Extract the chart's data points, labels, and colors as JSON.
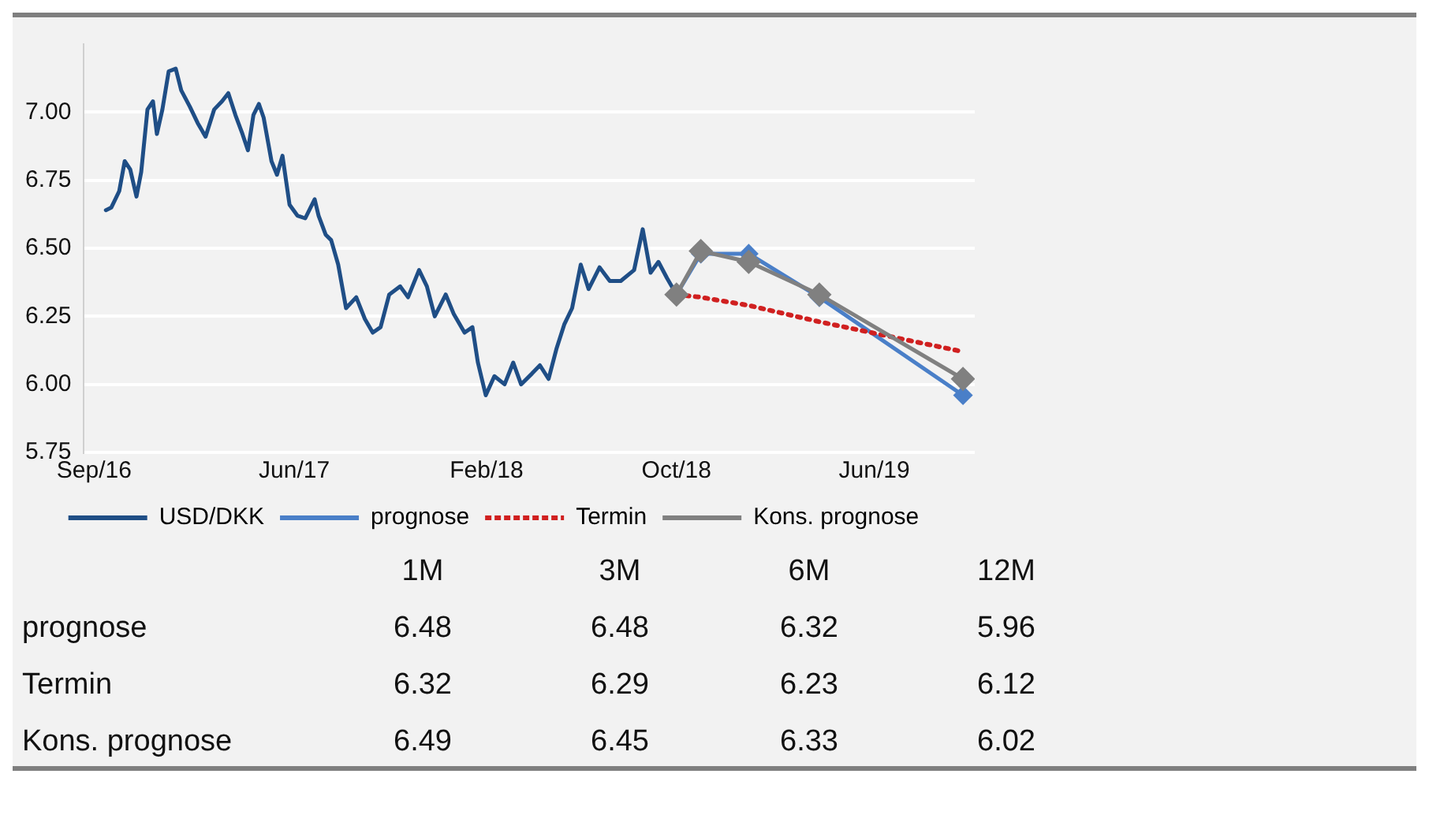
{
  "chart_data": [
    {
      "type": "line",
      "xlim": [
        "2016-09-15",
        "2019-10-25"
      ],
      "xticks": [
        {
          "value": "2016-09-28",
          "label": "Sep/16"
        },
        {
          "value": "2017-06-10",
          "label": "Jun/17"
        },
        {
          "value": "2018-02-10",
          "label": "Feb/18"
        },
        {
          "value": "2018-10-10",
          "label": "Oct/18"
        },
        {
          "value": "2019-06-19",
          "label": "Jun/19"
        }
      ],
      "ylim": [
        5.75,
        7.25
      ],
      "yticks": [
        {
          "value": 5.75,
          "label": "5.75"
        },
        {
          "value": 6,
          "label": "6.00"
        },
        {
          "value": 6.25,
          "label": "6.25"
        },
        {
          "value": 6.5,
          "label": "6.50"
        },
        {
          "value": 6.75,
          "label": "6.75"
        },
        {
          "value": 7,
          "label": "7.00"
        }
      ],
      "grid": "y",
      "legend": "bottom",
      "series": [
        {
          "name": "USD/DKK",
          "color": "#1f4e86",
          "marker": "none",
          "line_style": "solid",
          "x": [
            "2016-10-13",
            "2016-10-20",
            "2016-10-30",
            "2016-11-06",
            "2016-11-13",
            "2016-11-21",
            "2016-11-27",
            "2016-12-05",
            "2016-12-12",
            "2016-12-17",
            "2016-12-24",
            "2017-01-01",
            "2017-01-10",
            "2017-01-17",
            "2017-01-28",
            "2017-02-07",
            "2017-02-17",
            "2017-02-28",
            "2017-03-10",
            "2017-03-18",
            "2017-03-27",
            "2017-04-05",
            "2017-04-12",
            "2017-04-19",
            "2017-04-26",
            "2017-05-02",
            "2017-05-12",
            "2017-05-19",
            "2017-05-26",
            "2017-06-04",
            "2017-06-14",
            "2017-06-24",
            "2017-07-06",
            "2017-07-11",
            "2017-07-20",
            "2017-07-27",
            "2017-08-05",
            "2017-08-15",
            "2017-08-28",
            "2017-09-08",
            "2017-09-18",
            "2017-09-28",
            "2017-10-09",
            "2017-10-23",
            "2017-11-02",
            "2017-11-16",
            "2017-11-26",
            "2017-12-06",
            "2017-12-20",
            "2017-12-30",
            "2018-01-13",
            "2018-01-23",
            "2018-01-30",
            "2018-02-09",
            "2018-02-20",
            "2018-03-05",
            "2018-03-16",
            "2018-03-26",
            "2018-04-09",
            "2018-04-19",
            "2018-04-30",
            "2018-05-10",
            "2018-05-20",
            "2018-05-30",
            "2018-06-10",
            "2018-06-20",
            "2018-07-04",
            "2018-07-17",
            "2018-07-31",
            "2018-08-17",
            "2018-08-28",
            "2018-09-07",
            "2018-09-17",
            "2018-09-28",
            "2018-10-10"
          ],
          "values": [
            6.64,
            6.65,
            6.71,
            6.82,
            6.79,
            6.69,
            6.78,
            7.01,
            7.04,
            6.92,
            7.01,
            7.15,
            7.16,
            7.08,
            7.02,
            6.96,
            6.91,
            7.01,
            7.04,
            7.07,
            6.99,
            6.92,
            6.86,
            6.99,
            7.03,
            6.98,
            6.82,
            6.77,
            6.84,
            6.66,
            6.62,
            6.61,
            6.68,
            6.62,
            6.55,
            6.53,
            6.44,
            6.28,
            6.32,
            6.24,
            6.19,
            6.21,
            6.33,
            6.36,
            6.32,
            6.42,
            6.36,
            6.25,
            6.33,
            6.26,
            6.19,
            6.21,
            6.08,
            5.96,
            6.03,
            6.0,
            6.08,
            6.0,
            6.04,
            6.07,
            6.02,
            6.13,
            6.22,
            6.28,
            6.44,
            6.35,
            6.43,
            6.38,
            6.38,
            6.42,
            6.57,
            6.41,
            6.45,
            6.39,
            6.33
          ]
        },
        {
          "name": "prognose",
          "color": "#4a7fc8",
          "marker": "diamond",
          "line_style": "solid",
          "x": [
            "2018-10-10",
            "2018-11-10",
            "2019-01-10",
            "2019-04-10",
            "2019-10-10"
          ],
          "values": [
            6.33,
            6.48,
            6.48,
            6.32,
            5.96
          ]
        },
        {
          "name": "Termin",
          "color": "#d02020",
          "marker": "none",
          "line_style": "dotted",
          "x": [
            "2018-10-10",
            "2018-11-10",
            "2019-01-10",
            "2019-04-10",
            "2019-10-10"
          ],
          "values": [
            6.33,
            6.32,
            6.29,
            6.23,
            6.12
          ]
        },
        {
          "name": "Kons. prognose",
          "color": "#808080",
          "marker": "diamond",
          "line_style": "solid",
          "x": [
            "2018-10-10",
            "2018-11-10",
            "2019-01-10",
            "2019-04-10",
            "2019-10-10"
          ],
          "values": [
            6.33,
            6.49,
            6.45,
            6.33,
            6.02
          ]
        }
      ]
    },
    {
      "type": "other",
      "categories": [
        "1M",
        "3M",
        "6M",
        "12M"
      ],
      "data_labels": true,
      "series": [
        {
          "name": "prognose",
          "values": [
            6.48,
            6.48,
            6.32,
            5.96
          ]
        },
        {
          "name": "Termin",
          "values": [
            6.32,
            6.29,
            6.23,
            6.12
          ]
        },
        {
          "name": "Kons. prognose",
          "values": [
            6.49,
            6.45,
            6.33,
            6.02
          ]
        }
      ]
    }
  ]
}
